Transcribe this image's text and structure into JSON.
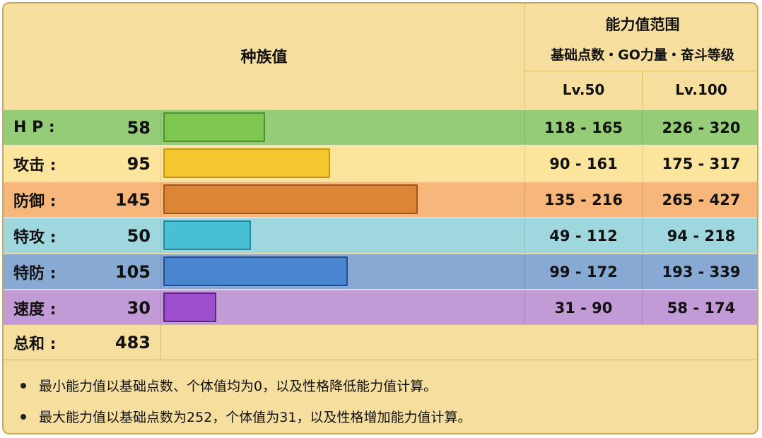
{
  "header": {
    "species_title": "种族值",
    "range_title": "能力值范围",
    "range_subtitle": "基础点数・GO力量・奋斗等级",
    "lv50": "Lv.50",
    "lv100": "Lv.100"
  },
  "stat_max": 255,
  "stats": [
    {
      "label": "H P :",
      "value": "58",
      "base": 58,
      "lv50": "118 - 165",
      "lv100": "226 - 320",
      "row_color": "#95cc78",
      "bar_color": "#7dc64f",
      "bar_border": "#4f8f2c"
    },
    {
      "label": "攻击 :",
      "value": "95",
      "base": 95,
      "lv50": "90 - 161",
      "lv100": "175 - 317",
      "row_color": "#fbe59d",
      "bar_color": "#f5c832",
      "bar_border": "#c69a10"
    },
    {
      "label": "防御 :",
      "value": "145",
      "base": 145,
      "lv50": "135 - 216",
      "lv100": "265 - 427",
      "row_color": "#f7b77a",
      "bar_color": "#db8537",
      "bar_border": "#a2561b"
    },
    {
      "label": "特攻 :",
      "value": "50",
      "base": 50,
      "lv50": "49 - 112",
      "lv100": "94 - 218",
      "row_color": "#9fd7df",
      "bar_color": "#48bfd2",
      "bar_border": "#25889a"
    },
    {
      "label": "特防 :",
      "value": "105",
      "base": 105,
      "lv50": "99 - 172",
      "lv100": "193 - 339",
      "row_color": "#87a9d4",
      "bar_color": "#4a86cf",
      "bar_border": "#244e93"
    },
    {
      "label": "速度 :",
      "value": "30",
      "base": 30,
      "lv50": "31 - 90",
      "lv100": "58 - 174",
      "row_color": "#c29bd6",
      "bar_color": "#9d4fcc",
      "bar_border": "#5e2283"
    }
  ],
  "total": {
    "label": "总和 :",
    "value": "483"
  },
  "notes": [
    "最小能力值以基础点数、个体值均为0，以及性格降低能力值计算。",
    "最大能力值以基础点数为252，个体值为31，以及性格增加能力值计算。"
  ]
}
